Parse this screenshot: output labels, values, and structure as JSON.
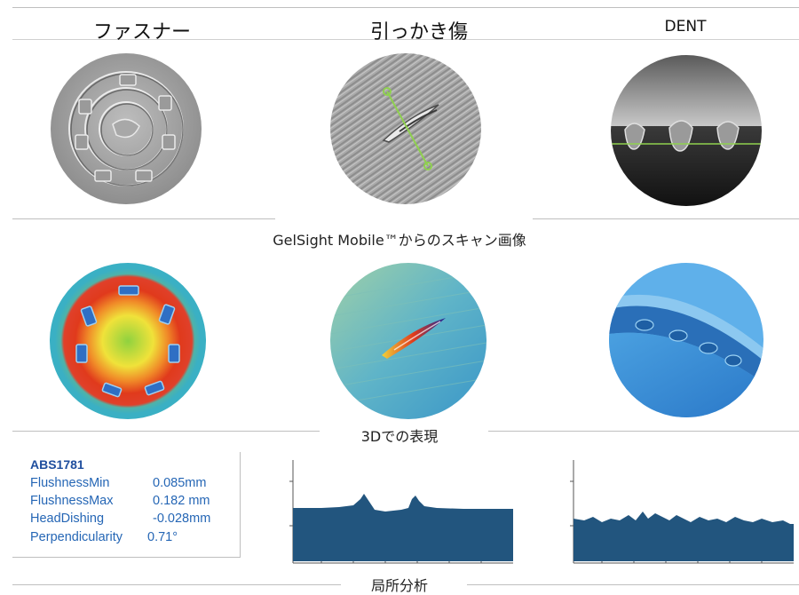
{
  "row1": {
    "titles": [
      "ファスナー",
      "引っかき傷",
      "DENT"
    ]
  },
  "captions": {
    "scan": "GelSight Mobile™からのスキャン画像",
    "render3d": "3Dでの表現",
    "analysis": "局所分析"
  },
  "measurements": {
    "id": "ABS1781",
    "rows": [
      {
        "label": "FlushnessMin",
        "value": "0.085mm"
      },
      {
        "label": "FlushnessMax",
        "value": "0.182 mm"
      },
      {
        "label": "HeadDishing",
        "value": "-0.028mm"
      },
      {
        "label": "Perpendicularity",
        "value": "0.71°"
      }
    ]
  },
  "colors": {
    "profile_fill": "#22557e",
    "text_blue": "#2566b5",
    "divider": "#bfbfbf",
    "measure_line": "#8fd14f"
  },
  "icons": [
    "fastener-scan-image",
    "scratch-scan-image",
    "dent-scan-image",
    "fastener-heatmap-image",
    "scratch-3d-image",
    "dent-3d-image"
  ]
}
